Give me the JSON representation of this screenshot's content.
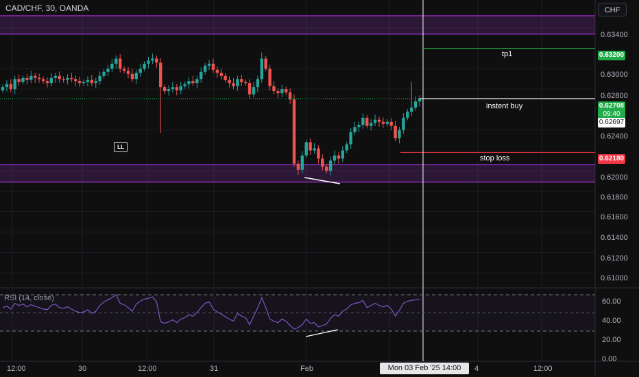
{
  "header": {
    "symbol": "CAD/CHF, 30, OANDA",
    "currency_button": "CHF"
  },
  "marker_ll": "LL",
  "price_axis": [
    "0.63400",
    "0.63000",
    "0.62800",
    "0.62400",
    "0.62000",
    "0.61800",
    "0.61600",
    "0.61400",
    "0.61200",
    "0.61000"
  ],
  "levels": {
    "tp": {
      "label": "tp1",
      "price": "0.63200",
      "color": "#22ab4a"
    },
    "entry": {
      "label": "instent buy",
      "price": "0.62708",
      "countdown": "09:40",
      "color": "#22ab4a"
    },
    "crosshair_price": "0.62697",
    "stop": {
      "label": "stop loss",
      "price": "0.62180",
      "color": "#f23645"
    }
  },
  "rsi": {
    "title": "RSI (14, close)",
    "ticks": [
      "60.00",
      "40.00",
      "20.00",
      "0.00"
    ]
  },
  "time_axis": {
    "ticks": [
      "12:00",
      "30",
      "12:00",
      "31",
      "Feb",
      "4",
      "12:00"
    ],
    "crosshair_time": "Mon 03 Feb '25   14:00"
  },
  "colors": {
    "up": "#26a69a",
    "down": "#ef5350",
    "zone": "#a635d8",
    "rsi_line": "#7e57c2"
  },
  "chart_data": {
    "type": "candlestick",
    "instrument": "CAD/CHF",
    "ylim": [
      0.6092,
      0.6358
    ],
    "supply_zone": [
      0.6334,
      0.6352
    ],
    "demand_zone": [
      0.6189,
      0.6206
    ],
    "closes": [
      0.6282,
      0.6285,
      0.628,
      0.629,
      0.6287,
      0.6291,
      0.6289,
      0.6293,
      0.6291,
      0.629,
      0.6288,
      0.6286,
      0.6291,
      0.6293,
      0.629,
      0.6289,
      0.6291,
      0.629,
      0.6288,
      0.6286,
      0.6287,
      0.6289,
      0.6286,
      0.6288,
      0.6293,
      0.6297,
      0.63,
      0.6305,
      0.631,
      0.63,
      0.6298,
      0.6295,
      0.629,
      0.6296,
      0.63,
      0.6305,
      0.6308,
      0.631,
      0.6306,
      0.6282,
      0.6278,
      0.628,
      0.6282,
      0.6279,
      0.6283,
      0.6285,
      0.6288,
      0.6286,
      0.629,
      0.6297,
      0.6303,
      0.6305,
      0.6299,
      0.6296,
      0.6293,
      0.6289,
      0.6286,
      0.6283,
      0.629,
      0.6287,
      0.6286,
      0.6275,
      0.6282,
      0.629,
      0.631,
      0.63,
      0.6283,
      0.6278,
      0.6276,
      0.628,
      0.6277,
      0.627,
      0.6207,
      0.6201,
      0.6215,
      0.6228,
      0.622,
      0.6222,
      0.6212,
      0.6204,
      0.62,
      0.621,
      0.6215,
      0.6212,
      0.622,
      0.6226,
      0.6238,
      0.6243,
      0.6245,
      0.6252,
      0.6244,
      0.6247,
      0.625,
      0.6248,
      0.6246,
      0.6248,
      0.6244,
      0.6232,
      0.624,
      0.6252,
      0.6258,
      0.6262,
      0.6268,
      0.6271
    ],
    "rsi_values": [
      52,
      54,
      50,
      58,
      55,
      57,
      53,
      56,
      54,
      52,
      50,
      49,
      55,
      57,
      52,
      51,
      53,
      50,
      47,
      45,
      46,
      49,
      44,
      47,
      55,
      60,
      63,
      66,
      70,
      58,
      56,
      52,
      47,
      57,
      61,
      64,
      65,
      67,
      60,
      32,
      30,
      32,
      35,
      31,
      36,
      38,
      42,
      40,
      45,
      52,
      58,
      60,
      50,
      46,
      43,
      39,
      36,
      33,
      44,
      40,
      38,
      28,
      40,
      52,
      66,
      52,
      36,
      33,
      31,
      36,
      33,
      27,
      22,
      24,
      28,
      36,
      30,
      31,
      25,
      27,
      29,
      37,
      42,
      40,
      47,
      50,
      56,
      58,
      59,
      62,
      52,
      55,
      58,
      55,
      53,
      55,
      50,
      40,
      48,
      58,
      61,
      62,
      63,
      64
    ]
  }
}
